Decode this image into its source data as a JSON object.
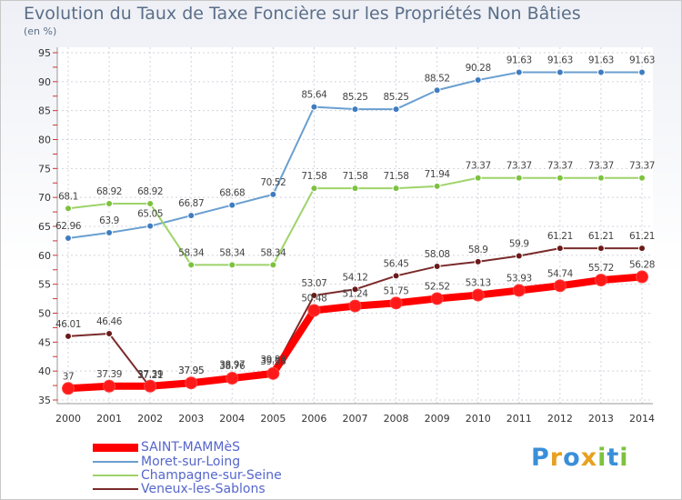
{
  "chart_data": {
    "type": "line",
    "title": "Evolution du Taux de Taxe Foncière sur les Propriétés Non Bâties",
    "ylabel": "(en %)",
    "xlabel": "",
    "x": [
      "2000",
      "2001",
      "2002",
      "2003",
      "2004",
      "2005",
      "2006",
      "2007",
      "2008",
      "2009",
      "2010",
      "2011",
      "2012",
      "2013",
      "2014"
    ],
    "ylim": [
      35,
      95
    ],
    "yticks": [
      35,
      40,
      45,
      50,
      55,
      60,
      65,
      70,
      75,
      80,
      85,
      90,
      95
    ],
    "grid": true,
    "legend_position": "bottom-left",
    "series": [
      {
        "name": "Moret-sur-Loing",
        "color": "#6a9fd0",
        "marker": "#3f7cc0",
        "values": [
          62.96,
          63.9,
          65.05,
          66.87,
          68.68,
          70.52,
          85.64,
          85.25,
          85.25,
          88.52,
          90.28,
          91.63,
          91.63,
          91.63,
          91.63
        ],
        "labels": [
          "62.96",
          "63.9",
          "65.05",
          "66.87",
          "68.68",
          "70.52",
          "85.64",
          "85.25",
          "85.25",
          "88.52",
          "90.28",
          "91.63",
          "91.63",
          "91.63",
          "91.63"
        ]
      },
      {
        "name": "Champagne-sur-Seine",
        "color": "#9ed36a",
        "marker": "#7cc23e",
        "values": [
          68.1,
          68.92,
          68.92,
          58.34,
          58.34,
          58.34,
          71.58,
          71.58,
          71.58,
          71.94,
          73.37,
          73.37,
          73.37,
          73.37,
          73.37
        ],
        "labels": [
          "68.1",
          "68.92",
          "68.92",
          "58.34",
          "58.34",
          "58.34",
          "71.58",
          "71.58",
          "71.58",
          "71.94",
          "73.37",
          "73.37",
          "73.37",
          "73.37",
          "73.37"
        ]
      },
      {
        "name": "Veneux-les-Sablons",
        "color": "#7a2a2a",
        "marker": "#6a1a1a",
        "values": [
          46.01,
          46.46,
          37.21,
          37.95,
          38.97,
          39.88,
          53.07,
          54.12,
          56.45,
          58.08,
          58.9,
          59.9,
          61.21,
          61.21,
          61.21
        ],
        "labels": [
          "46.01",
          "46.46",
          "37.21",
          "37.95",
          "38.97",
          "39.88",
          "53.07",
          "54.12",
          "56.45",
          "58.08",
          "58.9",
          "59.9",
          "61.21",
          "61.21",
          "61.21"
        ]
      },
      {
        "name": "SAINT-MAMMèS",
        "color": "#ff0000",
        "marker": "#ff1a1a",
        "values": [
          37,
          37.39,
          37.39,
          37.95,
          38.76,
          39.58,
          50.48,
          51.24,
          51.75,
          52.52,
          53.13,
          53.93,
          54.74,
          55.72,
          56.28
        ],
        "labels": [
          "37",
          "37.39",
          "37.39",
          "37.95",
          "38.76",
          "39.58",
          "50.48",
          "51.24",
          "51.75",
          "52.52",
          "53.13",
          "53.93",
          "54.74",
          "55.72",
          "56.28"
        ]
      }
    ],
    "legend": [
      {
        "name": "SAINT-MAMMèS",
        "color": "#ff0000"
      },
      {
        "name": "Moret-sur-Loing",
        "color": "#6a9fd0"
      },
      {
        "name": "Champagne-sur-Seine",
        "color": "#9ed36a"
      },
      {
        "name": "Veneux-les-Sablons",
        "color": "#7a2a2a"
      }
    ]
  },
  "logo": {
    "letters": [
      "P",
      "r",
      "o",
      "x",
      "i",
      "t",
      "i"
    ],
    "colors": [
      "#3a8fd8",
      "#e8a020",
      "#3a8fd8",
      "#e8a020",
      "#7cc23e",
      "#3a8fd8",
      "#7cc23e"
    ]
  }
}
